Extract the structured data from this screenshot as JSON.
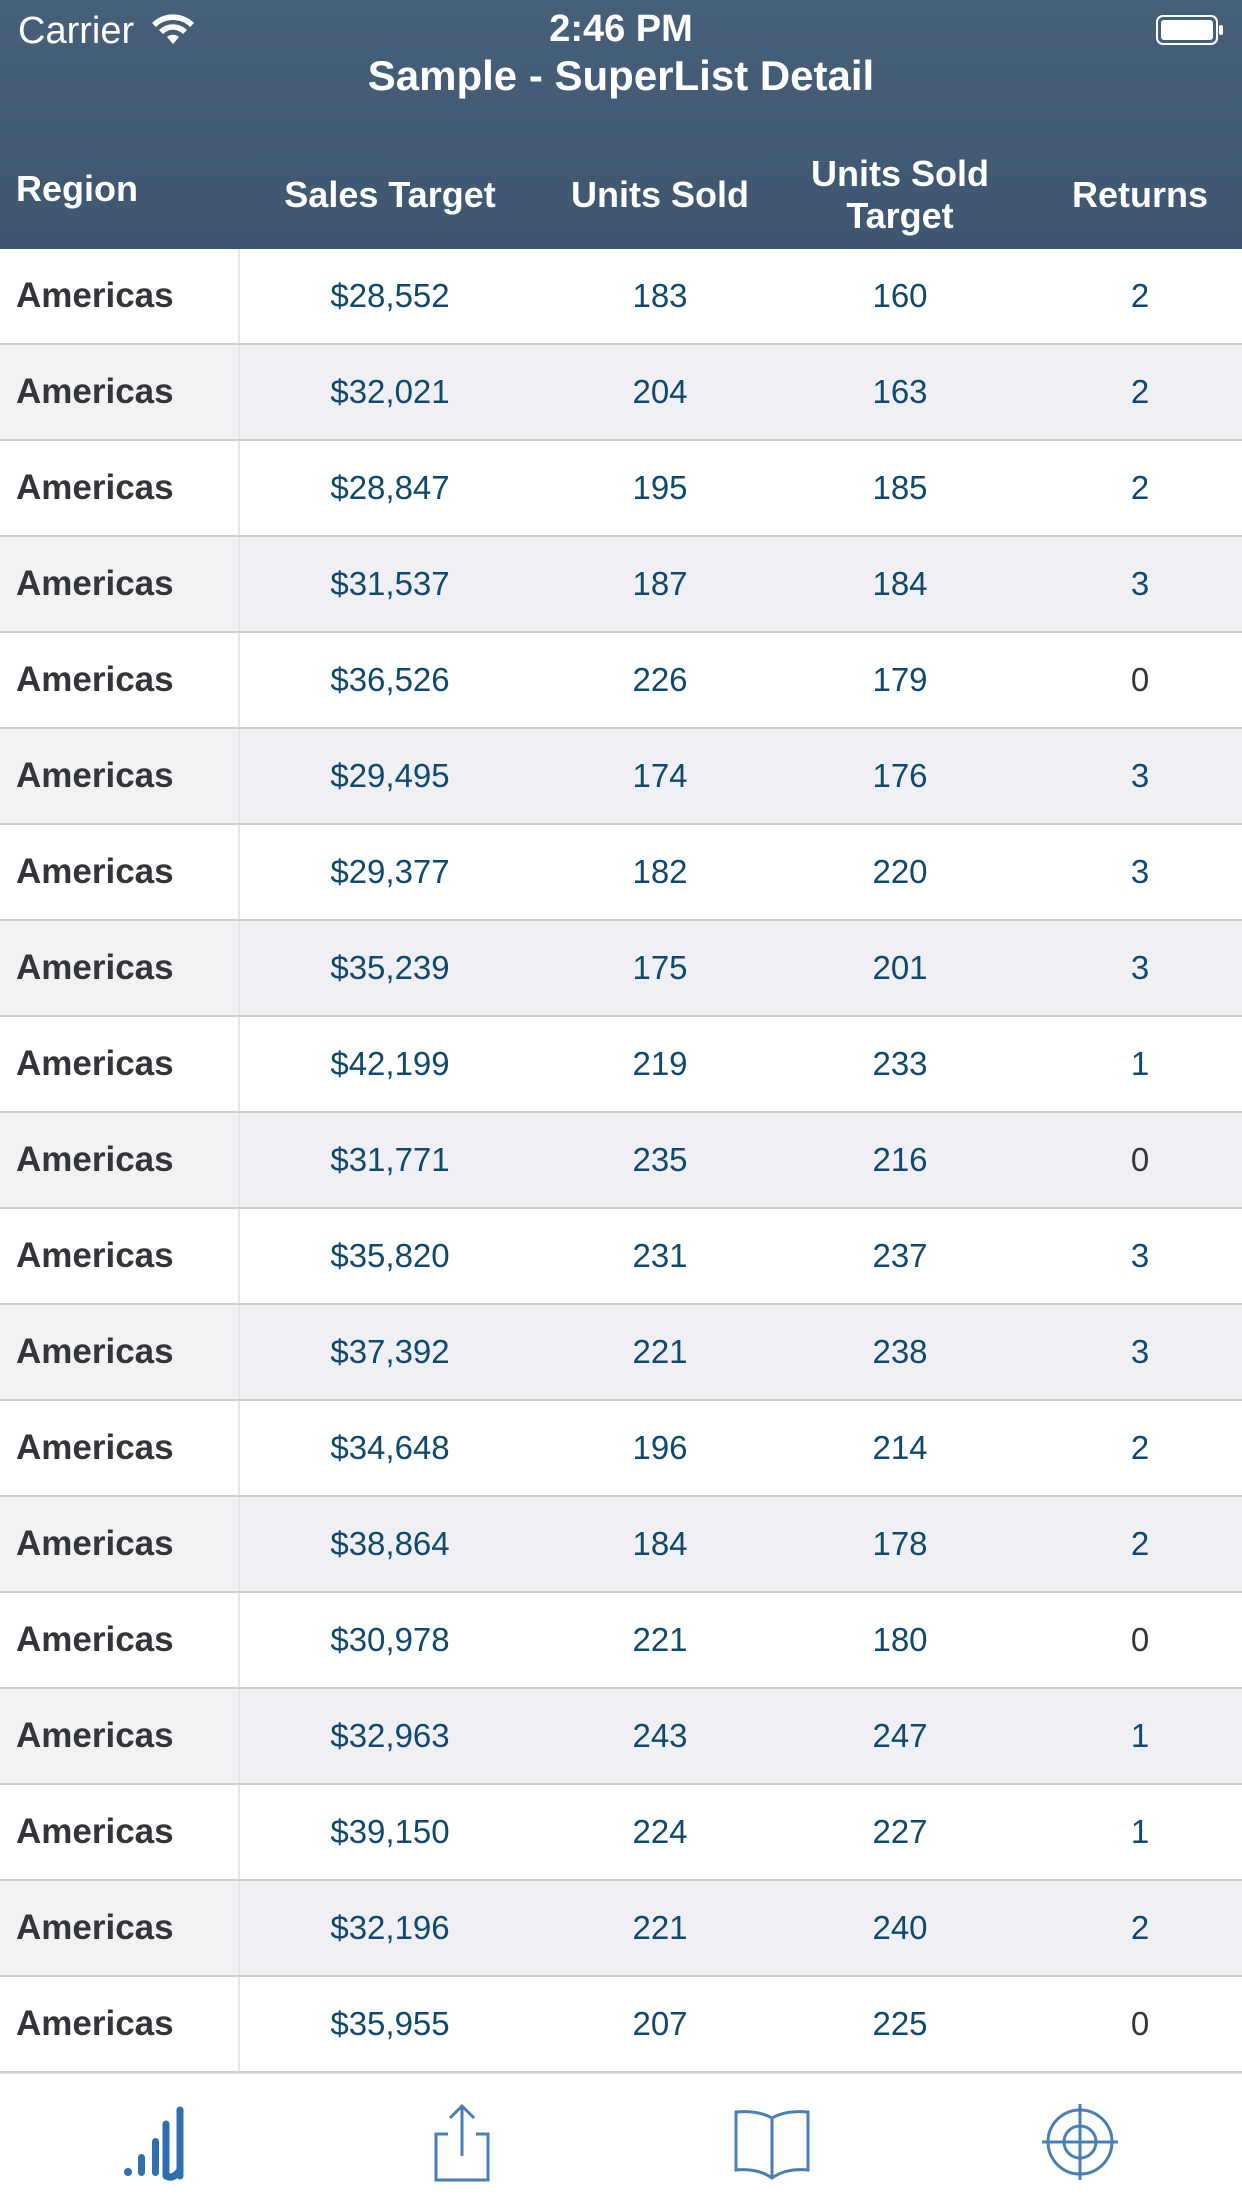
{
  "status_bar": {
    "carrier": "Carrier",
    "time": "2:46 PM"
  },
  "header": {
    "title": "Sample - SuperList Detail"
  },
  "columns": {
    "region": "Region",
    "sales_target": "Sales Target",
    "units_sold": "Units Sold",
    "units_sold_target": "Units Sold Target",
    "returns": "Returns"
  },
  "rows": [
    {
      "region": "Americas",
      "sales_target": "$28,552",
      "units_sold": "183",
      "units_sold_target": "160",
      "returns": "2"
    },
    {
      "region": "Americas",
      "sales_target": "$32,021",
      "units_sold": "204",
      "units_sold_target": "163",
      "returns": "2"
    },
    {
      "region": "Americas",
      "sales_target": "$28,847",
      "units_sold": "195",
      "units_sold_target": "185",
      "returns": "2"
    },
    {
      "region": "Americas",
      "sales_target": "$31,537",
      "units_sold": "187",
      "units_sold_target": "184",
      "returns": "3"
    },
    {
      "region": "Americas",
      "sales_target": "$36,526",
      "units_sold": "226",
      "units_sold_target": "179",
      "returns": "0"
    },
    {
      "region": "Americas",
      "sales_target": "$29,495",
      "units_sold": "174",
      "units_sold_target": "176",
      "returns": "3"
    },
    {
      "region": "Americas",
      "sales_target": "$29,377",
      "units_sold": "182",
      "units_sold_target": "220",
      "returns": "3"
    },
    {
      "region": "Americas",
      "sales_target": "$35,239",
      "units_sold": "175",
      "units_sold_target": "201",
      "returns": "3"
    },
    {
      "region": "Americas",
      "sales_target": "$42,199",
      "units_sold": "219",
      "units_sold_target": "233",
      "returns": "1"
    },
    {
      "region": "Americas",
      "sales_target": "$31,771",
      "units_sold": "235",
      "units_sold_target": "216",
      "returns": "0"
    },
    {
      "region": "Americas",
      "sales_target": "$35,820",
      "units_sold": "231",
      "units_sold_target": "237",
      "returns": "3"
    },
    {
      "region": "Americas",
      "sales_target": "$37,392",
      "units_sold": "221",
      "units_sold_target": "238",
      "returns": "3"
    },
    {
      "region": "Americas",
      "sales_target": "$34,648",
      "units_sold": "196",
      "units_sold_target": "214",
      "returns": "2"
    },
    {
      "region": "Americas",
      "sales_target": "$38,864",
      "units_sold": "184",
      "units_sold_target": "178",
      "returns": "2"
    },
    {
      "region": "Americas",
      "sales_target": "$30,978",
      "units_sold": "221",
      "units_sold_target": "180",
      "returns": "0"
    },
    {
      "region": "Americas",
      "sales_target": "$32,963",
      "units_sold": "243",
      "units_sold_target": "247",
      "returns": "1"
    },
    {
      "region": "Americas",
      "sales_target": "$39,150",
      "units_sold": "224",
      "units_sold_target": "227",
      "returns": "1"
    },
    {
      "region": "Americas",
      "sales_target": "$32,196",
      "units_sold": "221",
      "units_sold_target": "240",
      "returns": "2"
    },
    {
      "region": "Americas",
      "sales_target": "$35,955",
      "units_sold": "207",
      "units_sold_target": "225",
      "returns": "0"
    }
  ],
  "tabbar": {
    "items": [
      {
        "icon": "analytics-bars-icon",
        "active": true
      },
      {
        "icon": "share-icon",
        "active": false
      },
      {
        "icon": "open-book-icon",
        "active": false
      },
      {
        "icon": "crosshair-target-icon",
        "active": false
      }
    ],
    "active_color": "#2f6fb0",
    "inactive_color": "#4a7fb5"
  },
  "colors": {
    "header_bg": "#3e5670",
    "value_text": "#0f4a6d",
    "zero_text": "#32363a",
    "row_alt_bg": "#efeff4"
  }
}
